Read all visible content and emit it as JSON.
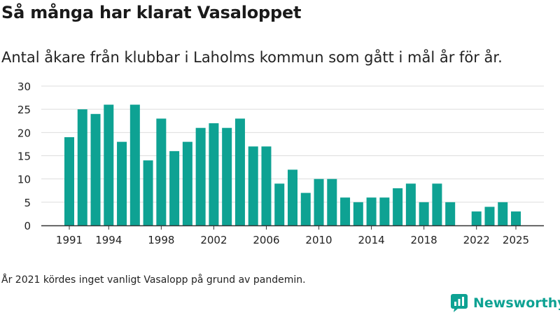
{
  "title": "Så många har klarat Vasaloppet",
  "subtitle": "Antal åkare från klubbar i Laholms kommun som gått i mål år för år.",
  "footnote": "År 2021 kördes inget vanligt Vasalopp på grund av pandemin.",
  "brand": {
    "name": "Newsworthy",
    "icon": "newsworthy-logo-icon"
  },
  "colors": {
    "bar": "#0ea293",
    "grid": "#dddddd",
    "axis": "#333333",
    "brand": "#0ea293"
  },
  "chart_data": {
    "type": "bar",
    "title": "Så många har klarat Vasaloppet",
    "xlabel": "",
    "ylabel": "",
    "ylim": [
      0,
      30
    ],
    "y_ticks": [
      "0",
      "5",
      "10",
      "15",
      "20",
      "25",
      "30"
    ],
    "x_ticks": [
      "1991",
      "1994",
      "1998",
      "2002",
      "2006",
      "2010",
      "2014",
      "2018",
      "2022",
      "2025"
    ],
    "grid": true,
    "categories": [
      "1991",
      "1992",
      "1993",
      "1994",
      "1995",
      "1996",
      "1997",
      "1998",
      "1999",
      "2000",
      "2001",
      "2002",
      "2003",
      "2004",
      "2005",
      "2006",
      "2007",
      "2008",
      "2009",
      "2010",
      "2011",
      "2012",
      "2013",
      "2014",
      "2015",
      "2016",
      "2017",
      "2018",
      "2019",
      "2020",
      "2021",
      "2022",
      "2023",
      "2024",
      "2025"
    ],
    "values": [
      19,
      25,
      24,
      26,
      18,
      26,
      14,
      23,
      16,
      18,
      21,
      22,
      21,
      23,
      17,
      17,
      9,
      12,
      7,
      10,
      10,
      6,
      5,
      6,
      6,
      8,
      9,
      5,
      9,
      5,
      null,
      3,
      4,
      5,
      3
    ]
  }
}
